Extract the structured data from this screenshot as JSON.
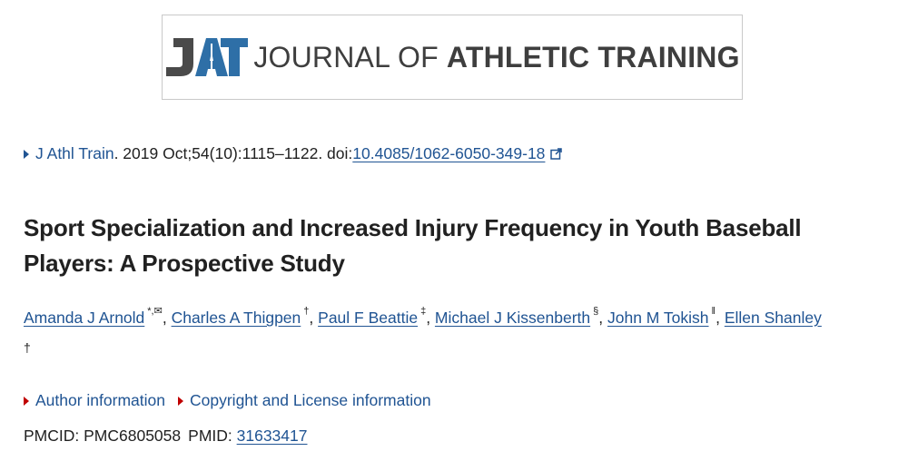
{
  "banner": {
    "logo_mark": "JAT",
    "name_light": "JOURNAL OF ",
    "name_bold": "ATHLETIC TRAINING",
    "colors": {
      "blue": "#2e6fa7",
      "gray": "#4a4a4a"
    }
  },
  "citation": {
    "journal_link": "J Athl Train",
    "details": ". 2019 Oct;54(10):1115–1122. doi: ",
    "doi_link": "10.4085/1062-6050-349-18",
    "external_icon": "external-link-icon"
  },
  "title": "Sport Specialization and Increased Injury Frequency in Youth Baseball Players: A Prospective Study",
  "authors": [
    {
      "name": "Amanda J Arnold",
      "sup": "*,✉"
    },
    {
      "name": "Charles A Thigpen",
      "sup": "†"
    },
    {
      "name": "Paul F Beattie",
      "sup": "‡"
    },
    {
      "name": "Michael J Kissenberth",
      "sup": "§"
    },
    {
      "name": "John M Tokish",
      "sup": "ǁ"
    },
    {
      "name": "Ellen Shanley",
      "sup": "†"
    }
  ],
  "toggles": {
    "author_info": "Author information",
    "copyright": "Copyright and License information"
  },
  "ids": {
    "pmcid_label": "PMCID: PMC6805058",
    "pmid_label": "PMID: ",
    "pmid_link": "31633417"
  },
  "theme": {
    "link_color": "#205493",
    "toggle_arrow_color": "#c00000"
  }
}
